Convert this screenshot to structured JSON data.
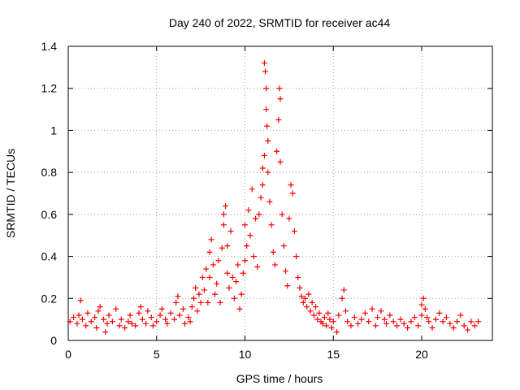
{
  "chart_data": {
    "type": "scatter",
    "title": "Day 240 of 2022, SRMTID for receiver ac44",
    "xlabel": "GPS time / hours",
    "ylabel": "SRMTID / TECUs",
    "xlim": [
      0,
      24
    ],
    "ylim": [
      0,
      1.4
    ],
    "xticks": [
      0,
      5,
      10,
      15,
      20
    ],
    "xtick_labels": [
      "0",
      "5",
      "10",
      "15",
      "20"
    ],
    "yticks": [
      0,
      0.2,
      0.4,
      0.6,
      0.8,
      1.0,
      1.2,
      1.4
    ],
    "ytick_labels": [
      "0",
      "0.2",
      "0.4",
      "0.6",
      "0.8",
      "1",
      "1.2",
      "1.4"
    ],
    "grid": true,
    "marker": "+",
    "color": "#ff0000",
    "series": [
      {
        "name": "SRMTID",
        "points": [
          [
            0.1,
            0.09
          ],
          [
            0.3,
            0.11
          ],
          [
            0.5,
            0.08
          ],
          [
            0.6,
            0.12
          ],
          [
            0.7,
            0.19
          ],
          [
            0.8,
            0.1
          ],
          [
            1.0,
            0.07
          ],
          [
            1.1,
            0.13
          ],
          [
            1.3,
            0.09
          ],
          [
            1.5,
            0.11
          ],
          [
            1.6,
            0.06
          ],
          [
            1.7,
            0.14
          ],
          [
            1.8,
            0.16
          ],
          [
            2.0,
            0.1
          ],
          [
            2.1,
            0.04
          ],
          [
            2.2,
            0.08
          ],
          [
            2.3,
            0.12
          ],
          [
            2.5,
            0.09
          ],
          [
            2.7,
            0.15
          ],
          [
            2.9,
            0.07
          ],
          [
            3.0,
            0.1
          ],
          [
            3.2,
            0.06
          ],
          [
            3.4,
            0.09
          ],
          [
            3.5,
            0.12
          ],
          [
            3.6,
            0.08
          ],
          [
            3.8,
            0.07
          ],
          [
            4.0,
            0.13
          ],
          [
            4.1,
            0.16
          ],
          [
            4.2,
            0.1
          ],
          [
            4.4,
            0.08
          ],
          [
            4.5,
            0.14
          ],
          [
            4.7,
            0.11
          ],
          [
            4.8,
            0.07
          ],
          [
            5.0,
            0.09
          ],
          [
            5.2,
            0.12
          ],
          [
            5.3,
            0.15
          ],
          [
            5.5,
            0.1
          ],
          [
            5.6,
            0.08
          ],
          [
            5.8,
            0.13
          ],
          [
            6.0,
            0.1
          ],
          [
            6.1,
            0.18
          ],
          [
            6.2,
            0.21
          ],
          [
            6.3,
            0.12
          ],
          [
            6.5,
            0.15
          ],
          [
            6.6,
            0.08
          ],
          [
            6.8,
            0.11
          ],
          [
            6.9,
            0.09
          ],
          [
            7.0,
            0.16
          ],
          [
            7.1,
            0.2
          ],
          [
            7.2,
            0.25
          ],
          [
            7.3,
            0.14
          ],
          [
            7.4,
            0.22
          ],
          [
            7.5,
            0.18
          ],
          [
            7.6,
            0.3
          ],
          [
            7.7,
            0.24
          ],
          [
            7.8,
            0.34
          ],
          [
            7.9,
            0.18
          ],
          [
            8.0,
            0.3
          ],
          [
            8.0,
            0.42
          ],
          [
            8.1,
            0.48
          ],
          [
            8.2,
            0.36
          ],
          [
            8.3,
            0.22
          ],
          [
            8.4,
            0.27
          ],
          [
            8.5,
            0.38
          ],
          [
            8.6,
            0.18
          ],
          [
            8.7,
            0.44
          ],
          [
            8.8,
            0.55
          ],
          [
            8.8,
            0.6
          ],
          [
            8.9,
            0.64
          ],
          [
            9.0,
            0.32
          ],
          [
            9.0,
            0.45
          ],
          [
            9.1,
            0.25
          ],
          [
            9.2,
            0.52
          ],
          [
            9.3,
            0.3
          ],
          [
            9.4,
            0.2
          ],
          [
            9.5,
            0.28
          ],
          [
            9.6,
            0.36
          ],
          [
            9.7,
            0.15
          ],
          [
            9.8,
            0.22
          ],
          [
            9.9,
            0.32
          ],
          [
            10.0,
            0.38
          ],
          [
            10.0,
            0.55
          ],
          [
            10.1,
            0.45
          ],
          [
            10.2,
            0.62
          ],
          [
            10.3,
            0.5
          ],
          [
            10.4,
            0.72
          ],
          [
            10.5,
            0.4
          ],
          [
            10.6,
            0.58
          ],
          [
            10.7,
            0.35
          ],
          [
            10.8,
            0.6
          ],
          [
            10.9,
            0.68
          ],
          [
            11.0,
            0.74
          ],
          [
            11.0,
            0.82
          ],
          [
            11.1,
            0.88
          ],
          [
            11.1,
            1.32
          ],
          [
            11.15,
            1.28
          ],
          [
            11.2,
            1.2
          ],
          [
            11.2,
            1.1
          ],
          [
            11.25,
            1.02
          ],
          [
            11.3,
            0.95
          ],
          [
            11.3,
            0.8
          ],
          [
            11.4,
            0.66
          ],
          [
            11.5,
            0.55
          ],
          [
            11.6,
            0.42
          ],
          [
            11.7,
            0.36
          ],
          [
            11.8,
            0.9
          ],
          [
            11.9,
            1.05
          ],
          [
            11.95,
            1.2
          ],
          [
            12.0,
            1.15
          ],
          [
            12.0,
            0.85
          ],
          [
            12.1,
            0.6
          ],
          [
            12.2,
            0.45
          ],
          [
            12.3,
            0.33
          ],
          [
            12.4,
            0.26
          ],
          [
            12.5,
            0.58
          ],
          [
            12.6,
            0.74
          ],
          [
            12.7,
            0.7
          ],
          [
            12.8,
            0.52
          ],
          [
            12.9,
            0.4
          ],
          [
            13.0,
            0.3
          ],
          [
            13.1,
            0.25
          ],
          [
            13.2,
            0.21
          ],
          [
            13.3,
            0.18
          ],
          [
            13.4,
            0.2
          ],
          [
            13.5,
            0.16
          ],
          [
            13.6,
            0.22
          ],
          [
            13.7,
            0.14
          ],
          [
            13.8,
            0.18
          ],
          [
            13.9,
            0.12
          ],
          [
            14.0,
            0.16
          ],
          [
            14.1,
            0.1
          ],
          [
            14.2,
            0.13
          ],
          [
            14.3,
            0.09
          ],
          [
            14.4,
            0.08
          ],
          [
            14.5,
            0.11
          ],
          [
            14.6,
            0.07
          ],
          [
            14.7,
            0.13
          ],
          [
            14.8,
            0.1
          ],
          [
            14.9,
            0.06
          ],
          [
            15.0,
            0.09
          ],
          [
            15.2,
            0.04
          ],
          [
            15.3,
            0.12
          ],
          [
            15.5,
            0.2
          ],
          [
            15.6,
            0.24
          ],
          [
            15.7,
            0.14
          ],
          [
            15.8,
            0.09
          ],
          [
            16.0,
            0.07
          ],
          [
            16.2,
            0.11
          ],
          [
            16.4,
            0.08
          ],
          [
            16.6,
            0.1
          ],
          [
            16.8,
            0.13
          ],
          [
            17.0,
            0.09
          ],
          [
            17.2,
            0.15
          ],
          [
            17.4,
            0.07
          ],
          [
            17.5,
            0.11
          ],
          [
            17.7,
            0.14
          ],
          [
            17.9,
            0.1
          ],
          [
            18.0,
            0.08
          ],
          [
            18.2,
            0.12
          ],
          [
            18.4,
            0.09
          ],
          [
            18.6,
            0.07
          ],
          [
            18.8,
            0.1
          ],
          [
            19.0,
            0.08
          ],
          [
            19.2,
            0.06
          ],
          [
            19.4,
            0.09
          ],
          [
            19.6,
            0.11
          ],
          [
            19.8,
            0.07
          ],
          [
            20.0,
            0.12
          ],
          [
            20.0,
            0.17
          ],
          [
            20.1,
            0.2
          ],
          [
            20.2,
            0.15
          ],
          [
            20.3,
            0.11
          ],
          [
            20.4,
            0.09
          ],
          [
            20.6,
            0.06
          ],
          [
            20.8,
            0.1
          ],
          [
            21.0,
            0.13
          ],
          [
            21.2,
            0.09
          ],
          [
            21.4,
            0.11
          ],
          [
            21.6,
            0.08
          ],
          [
            21.8,
            0.06
          ],
          [
            22.0,
            0.09
          ],
          [
            22.2,
            0.12
          ],
          [
            22.4,
            0.07
          ],
          [
            22.6,
            0.05
          ],
          [
            22.8,
            0.09
          ],
          [
            23.0,
            0.07
          ],
          [
            23.2,
            0.09
          ]
        ]
      }
    ]
  }
}
